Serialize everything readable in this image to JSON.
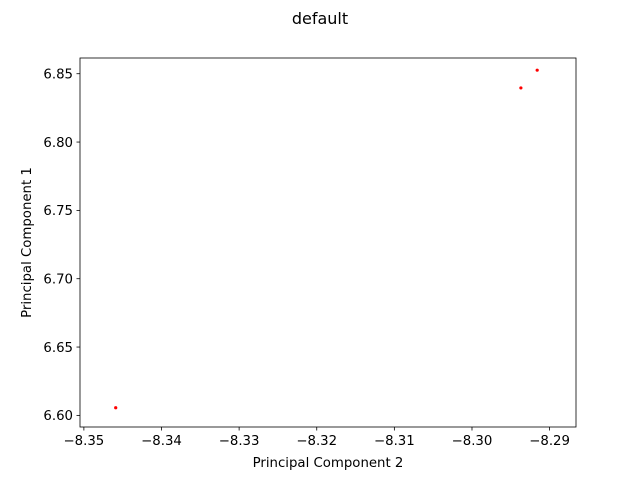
{
  "chart_data": {
    "type": "scatter",
    "title": "default",
    "xlabel": "Principal Component 2",
    "ylabel": "Principal Component 1",
    "xlim": [
      -8.3505,
      -8.2866
    ],
    "ylim": [
      6.5915,
      6.8615
    ],
    "xticks": [
      -8.35,
      -8.34,
      -8.33,
      -8.32,
      -8.31,
      -8.3,
      -8.29
    ],
    "xtick_labels": [
      "−8.35",
      "−8.34",
      "−8.33",
      "−8.32",
      "−8.31",
      "−8.30",
      "−8.29"
    ],
    "yticks": [
      6.6,
      6.65,
      6.7,
      6.75,
      6.8,
      6.85
    ],
    "ytick_labels": [
      "6.60",
      "6.65",
      "6.70",
      "6.75",
      "6.80",
      "6.85"
    ],
    "grid": false,
    "marker_color": "#ff0000",
    "series": [
      {
        "x": [
          -8.3459,
          -8.2937,
          -8.2916
        ],
        "y": [
          6.6056,
          6.8396,
          6.8526
        ]
      }
    ]
  }
}
